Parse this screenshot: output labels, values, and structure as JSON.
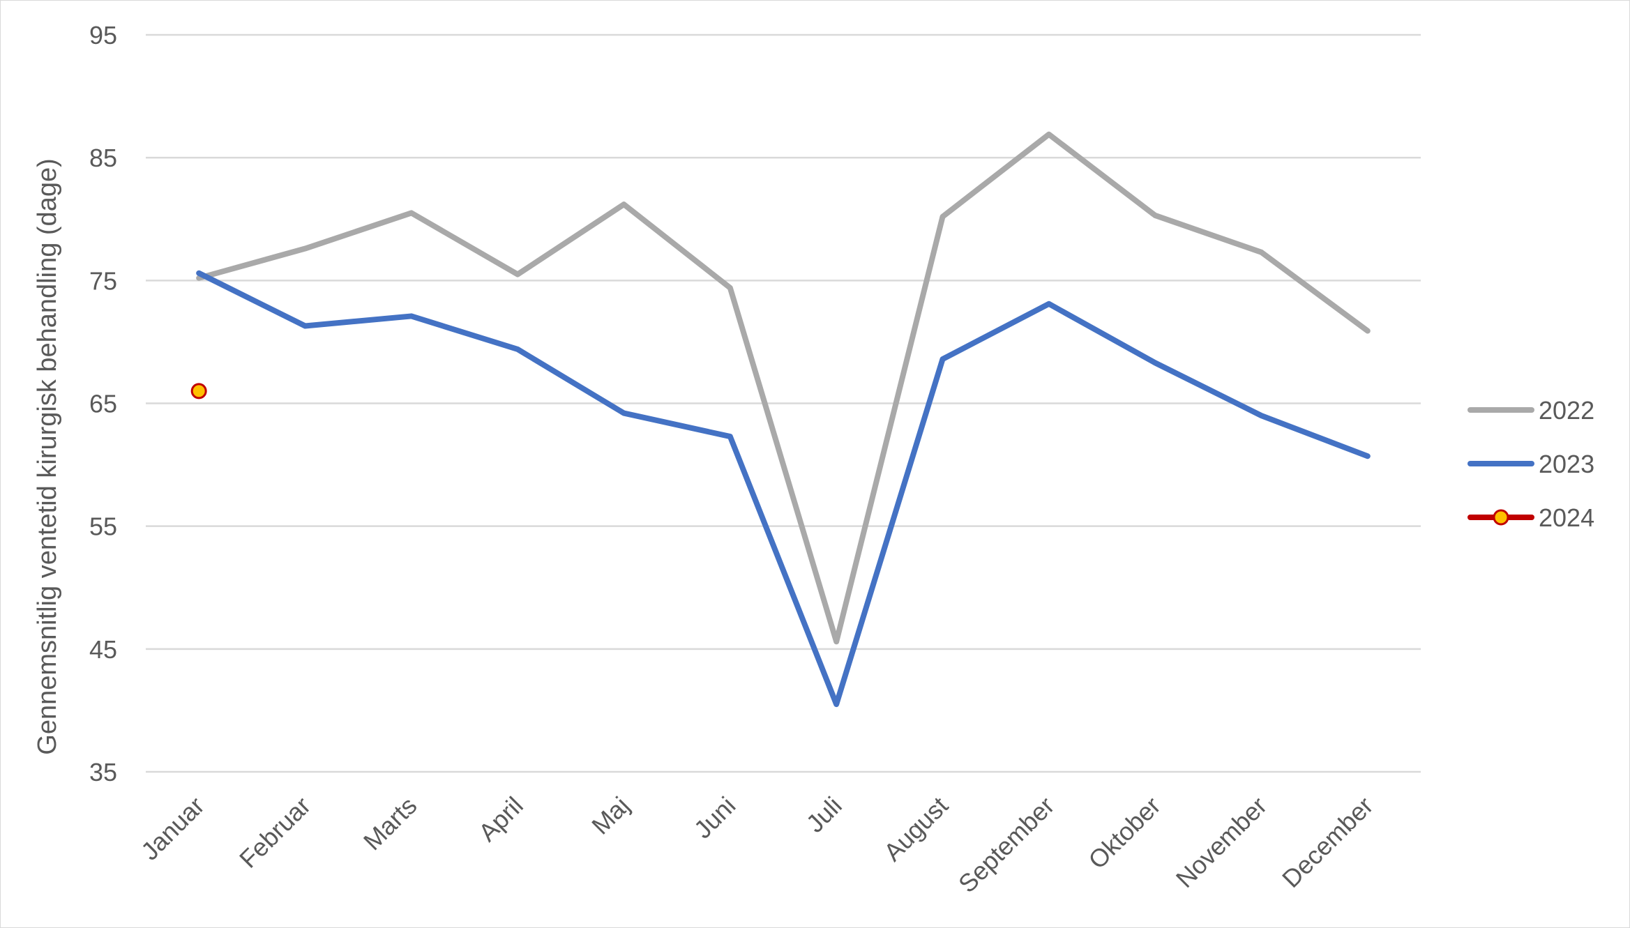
{
  "chart_data": {
    "type": "line",
    "title": "",
    "xlabel": "",
    "ylabel": "Gennemsnitlig ventetid kirurgisk behandling (dage)",
    "categories": [
      "Januar",
      "Februar",
      "Marts",
      "April",
      "Maj",
      "Juni",
      "Juli",
      "August",
      "September",
      "Oktober",
      "November",
      "December"
    ],
    "ylim": [
      35,
      95
    ],
    "yticks": [
      35,
      45,
      55,
      65,
      75,
      85,
      95
    ],
    "grid": "horizontal",
    "legend_position": "right",
    "series": [
      {
        "name": "2022",
        "color": "#a9a9a9",
        "marker": "none",
        "values": [
          75.2,
          77.6,
          80.5,
          75.5,
          81.2,
          74.4,
          45.6,
          80.2,
          86.9,
          80.3,
          77.3,
          70.9
        ]
      },
      {
        "name": "2023",
        "color": "#4472c4",
        "marker": "none",
        "values": [
          75.6,
          71.3,
          72.1,
          69.4,
          64.2,
          62.3,
          40.5,
          68.6,
          73.1,
          68.3,
          64.0,
          60.7
        ]
      },
      {
        "name": "2024",
        "color": "#c00000",
        "marker": "circle",
        "marker_fill": "#ffc000",
        "values": [
          66.0,
          null,
          null,
          null,
          null,
          null,
          null,
          null,
          null,
          null,
          null,
          null
        ]
      }
    ]
  }
}
